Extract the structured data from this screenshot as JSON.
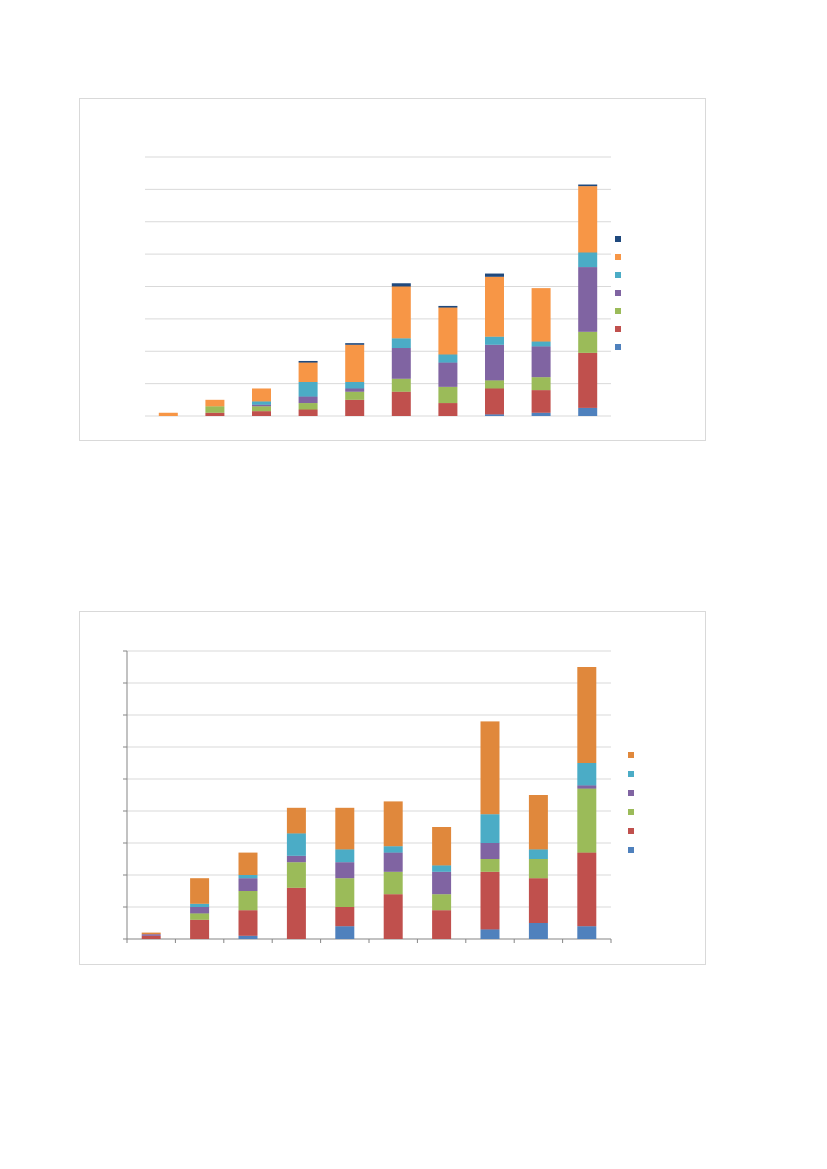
{
  "chart_data": [
    {
      "type": "bar",
      "stacked": true,
      "categories": [
        "",
        "",
        "",
        "",
        "",
        "",
        "",
        "",
        "",
        ""
      ],
      "ylim": [
        0,
        8
      ],
      "grid": true,
      "legend_position": "right",
      "series": [
        {
          "values": [
            0,
            0,
            0,
            0,
            0,
            0,
            0,
            0.05,
            0.1,
            0.25
          ],
          "color": "#4f81bd"
        },
        {
          "values": [
            0,
            0.1,
            0.15,
            0.2,
            0.5,
            0.75,
            0.4,
            0.8,
            0.7,
            1.7
          ],
          "color": "#c0504d"
        },
        {
          "values": [
            0,
            0.2,
            0.15,
            0.2,
            0.25,
            0.4,
            0.5,
            0.25,
            0.4,
            0.65
          ],
          "color": "#9bbb59"
        },
        {
          "values": [
            0,
            0,
            0.05,
            0.2,
            0.1,
            0.95,
            0.75,
            1.1,
            0.95,
            2.0
          ],
          "color": "#8064a2"
        },
        {
          "values": [
            0,
            0,
            0.1,
            0.45,
            0.2,
            0.3,
            0.25,
            0.25,
            0.15,
            0.45
          ],
          "color": "#4bacc6"
        },
        {
          "values": [
            0.1,
            0.2,
            0.4,
            0.6,
            1.15,
            1.6,
            1.45,
            1.85,
            1.65,
            2.05
          ],
          "color": "#f79646"
        },
        {
          "values": [
            0,
            0,
            0,
            0.05,
            0.05,
            0.1,
            0.05,
            0.1,
            0,
            0.05
          ],
          "color": "#1f497d"
        }
      ]
    },
    {
      "type": "bar",
      "stacked": true,
      "categories": [
        "",
        "",
        "",
        "",
        "",
        "",
        "",
        "",
        "",
        ""
      ],
      "ylim": [
        0,
        9
      ],
      "grid": true,
      "legend_position": "right",
      "series": [
        {
          "values": [
            0,
            0,
            0.1,
            0,
            0.4,
            0,
            0,
            0.3,
            0.5,
            0.4
          ],
          "color": "#4f81bd"
        },
        {
          "values": [
            0.1,
            0.6,
            0.8,
            1.6,
            0.6,
            1.4,
            0.9,
            1.8,
            1.4,
            2.3
          ],
          "color": "#c0504d"
        },
        {
          "values": [
            0,
            0.2,
            0.6,
            0.8,
            0.9,
            0.7,
            0.5,
            0.4,
            0.6,
            2.0
          ],
          "color": "#9bbb59"
        },
        {
          "values": [
            0.05,
            0.2,
            0.4,
            0.2,
            0.5,
            0.6,
            0.7,
            0.5,
            0,
            0.1
          ],
          "color": "#8064a2"
        },
        {
          "values": [
            0,
            0.1,
            0.1,
            0.7,
            0.4,
            0.2,
            0.2,
            0.9,
            0.3,
            0.7
          ],
          "color": "#4bacc6"
        },
        {
          "values": [
            0.05,
            0.8,
            0.7,
            0.8,
            1.3,
            1.4,
            1.2,
            2.9,
            1.7,
            3.0
          ],
          "color": "#e0883c"
        }
      ]
    }
  ]
}
